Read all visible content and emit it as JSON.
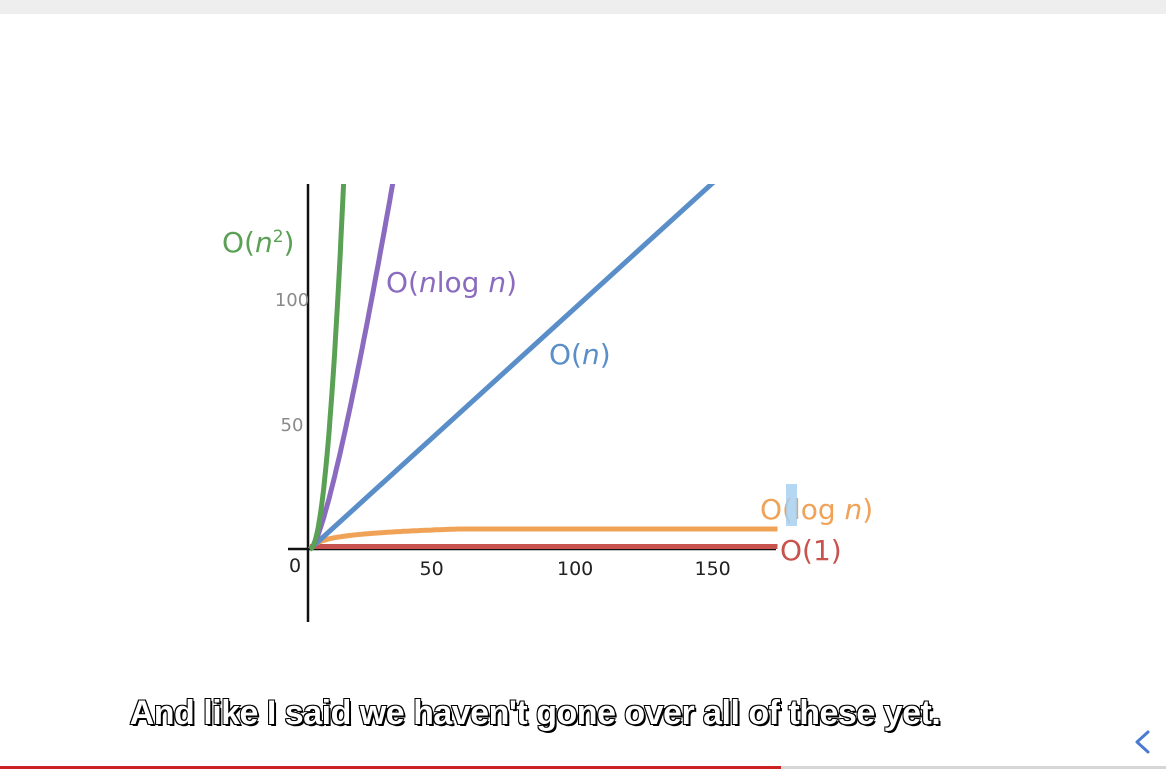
{
  "chart_data": {
    "type": "line",
    "title": "",
    "xlabel": "",
    "ylabel": "",
    "xlim": [
      0,
      175
    ],
    "ylim": [
      0,
      130
    ],
    "origin_label": "0",
    "x_ticks": [
      {
        "value": 50,
        "label": "50"
      },
      {
        "value": 100,
        "label": "100"
      },
      {
        "value": 150,
        "label": "150"
      }
    ],
    "y_ticks": [
      {
        "value": 50,
        "label": "50"
      },
      {
        "value": 100,
        "label": "100"
      }
    ],
    "series": [
      {
        "name": "O(1)",
        "label_main": "O(1)",
        "color": "#c8524e",
        "function": "constant",
        "x": [
          0,
          170
        ],
        "y": [
          1,
          1
        ]
      },
      {
        "name": "O(log n)",
        "label_main": "O(log ",
        "label_var": "n",
        "label_close": ")",
        "color": "#f0a257",
        "function": "log",
        "x": [
          0,
          5,
          20,
          50,
          100,
          170
        ],
        "y": [
          0,
          4,
          6,
          7,
          7.5,
          8
        ]
      },
      {
        "name": "O(n)",
        "label_main": "O(",
        "label_var": "n",
        "label_close": ")",
        "color": "#5a8ec8",
        "function": "linear",
        "x": [
          0,
          148
        ],
        "y": [
          0,
          148
        ]
      },
      {
        "name": "O(nlog n)",
        "label_main": "O(",
        "label_var": "n",
        "label_mid": "log ",
        "label_var2": "n",
        "label_close": ")",
        "color": "#8a6bc0",
        "function": "nlogn",
        "x": [
          0,
          5,
          10,
          15,
          20,
          25,
          30
        ],
        "y": [
          0,
          12,
          28,
          50,
          78,
          108,
          150
        ]
      },
      {
        "name": "O(n²)",
        "label_main": "O(",
        "label_var": "n",
        "label_sup": "2",
        "label_close": ")",
        "color": "#5aa055",
        "function": "quadratic",
        "x": [
          0,
          2,
          4,
          6,
          8,
          10,
          12
        ],
        "y": [
          0,
          4,
          16,
          36,
          64,
          100,
          144
        ]
      }
    ]
  },
  "caption": {
    "text": "And like I said we haven't gone over all of these yet."
  },
  "player": {
    "progress": 0.67,
    "colors": {
      "progress": "#cc2222",
      "track": "#d6d6d6"
    },
    "collapse_icon": "chevron-left-icon"
  }
}
